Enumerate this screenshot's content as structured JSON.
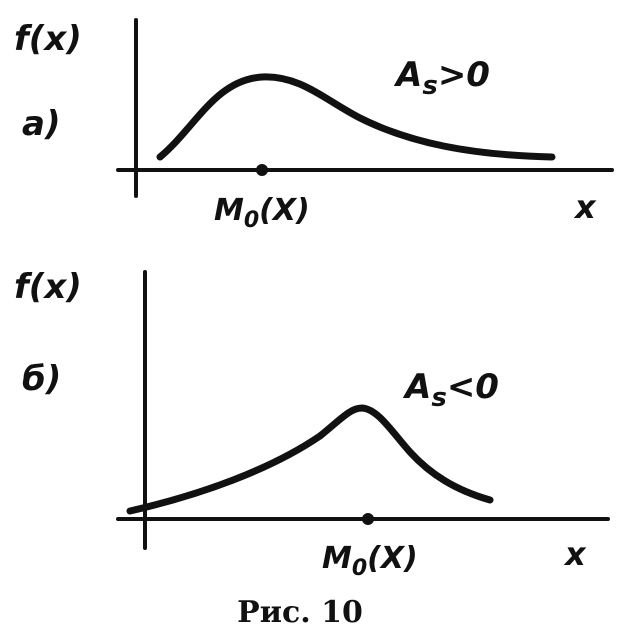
{
  "figure": {
    "caption": "Рис. 10",
    "ink_color": "#111111",
    "background": "#ffffff"
  },
  "panel_a": {
    "panel_label": "a)",
    "y_axis_label": "f(x)",
    "x_axis_label": "x",
    "mode_label": "M",
    "mode_subscript": "0",
    "mode_arg": "(X)",
    "asymmetry_A": "A",
    "asymmetry_sub": "s",
    "asymmetry_rel": ">0"
  },
  "panel_b": {
    "panel_label": "б)",
    "y_axis_label": "f(x)",
    "x_axis_label": "x",
    "mode_label": "M",
    "mode_subscript": "0",
    "mode_arg": "(X)",
    "asymmetry_A": "A",
    "asymmetry_sub": "s",
    "asymmetry_rel": "<0"
  }
}
